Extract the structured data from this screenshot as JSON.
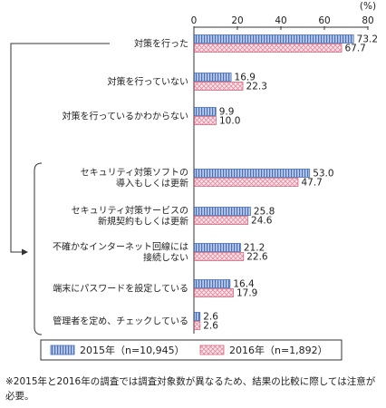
{
  "chart_data": {
    "type": "bar",
    "orientation": "horizontal",
    "unit": "(%)",
    "xlim": [
      0,
      80
    ],
    "xticks": [
      0,
      20,
      40,
      60,
      80
    ],
    "grid": false,
    "legend_position": "bottom",
    "groups": [
      {
        "categories": [
          "対策を行った",
          "対策を行っていない",
          "対策を行っているかわからない"
        ]
      },
      {
        "categories": [
          [
            "セキュリティ対策ソフトの",
            "導入もしくは更新"
          ],
          [
            "セキュリティ対策サービスの",
            "新規契約もしくは更新"
          ],
          [
            "不確かなインターネット回線には",
            "接続しない"
          ],
          [
            "端末にパスワードを設定している"
          ],
          [
            "管理者を定め、チェックしている"
          ]
        ]
      }
    ],
    "series": [
      {
        "name": "2015年（n=10,945）",
        "color": "#4a6fb3",
        "fill": "#b9c9ea",
        "pattern": "vertical-stripes",
        "values": [
          73.2,
          16.9,
          9.9,
          53.0,
          25.8,
          21.2,
          16.4,
          2.6
        ],
        "labels": [
          "73.2",
          "16.9",
          "9.9",
          "53.0",
          "25.8",
          "21.2",
          "16.4",
          "2.6"
        ]
      },
      {
        "name": "2016年（n=1,892）",
        "color": "#d9667f",
        "fill": "#fbe3e8",
        "pattern": "crosshatch",
        "values": [
          67.7,
          22.3,
          10.0,
          47.7,
          24.6,
          22.6,
          17.9,
          2.6
        ],
        "labels": [
          "67.7",
          "22.3",
          "10.0",
          "47.7",
          "24.6",
          "22.6",
          "17.9",
          "2.6"
        ]
      }
    ]
  },
  "note": "※2015年と2016年の調査では調査対象数が異なるため、結果の比較に際しては注意が必要。"
}
